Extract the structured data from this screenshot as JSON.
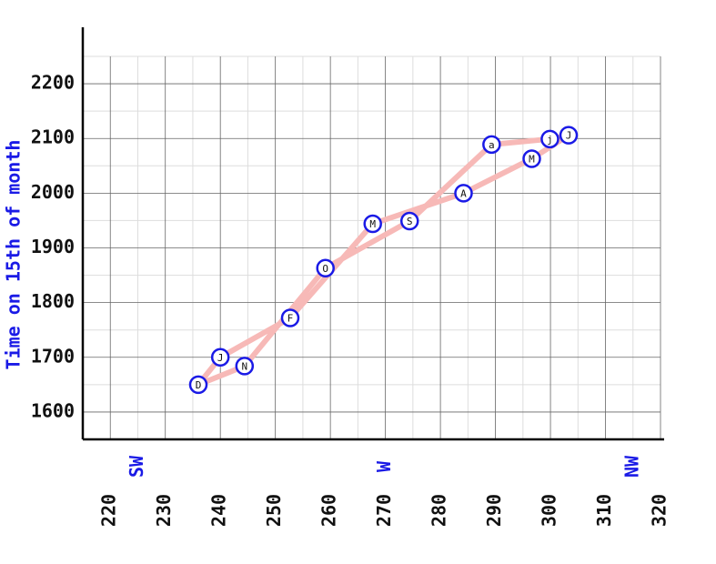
{
  "chart_data": {
    "type": "line",
    "y_label": "Time on 15th of month",
    "categories": [
      "J",
      "F",
      "M",
      "A",
      "M",
      "J",
      "j",
      "a",
      "S",
      "O",
      "N",
      "D"
    ],
    "x": [
      240,
      252.7,
      267.7,
      284.2,
      296.6,
      303.3,
      299.9,
      289.3,
      274.4,
      259.1,
      244.4,
      236
    ],
    "values": [
      1700,
      1772,
      1944,
      2000,
      2063,
      2106,
      2099,
      2089,
      1949,
      1863,
      1684,
      1650
    ],
    "color": "#f7b9b7",
    "marker_color": "#1a1ae6",
    "closed": true,
    "xlim": [
      215,
      320
    ],
    "xticks": [
      220,
      230,
      240,
      250,
      260,
      270,
      280,
      290,
      300,
      310,
      320
    ],
    "ylim": [
      1550,
      2250
    ],
    "yticks": [
      1600,
      1700,
      1800,
      1900,
      2000,
      2100,
      2200
    ],
    "annotations": [
      {
        "value": 225,
        "label": "SW"
      },
      {
        "value": 270,
        "label": "W"
      },
      {
        "value": 315,
        "label": "NW"
      }
    ],
    "grid": true
  }
}
